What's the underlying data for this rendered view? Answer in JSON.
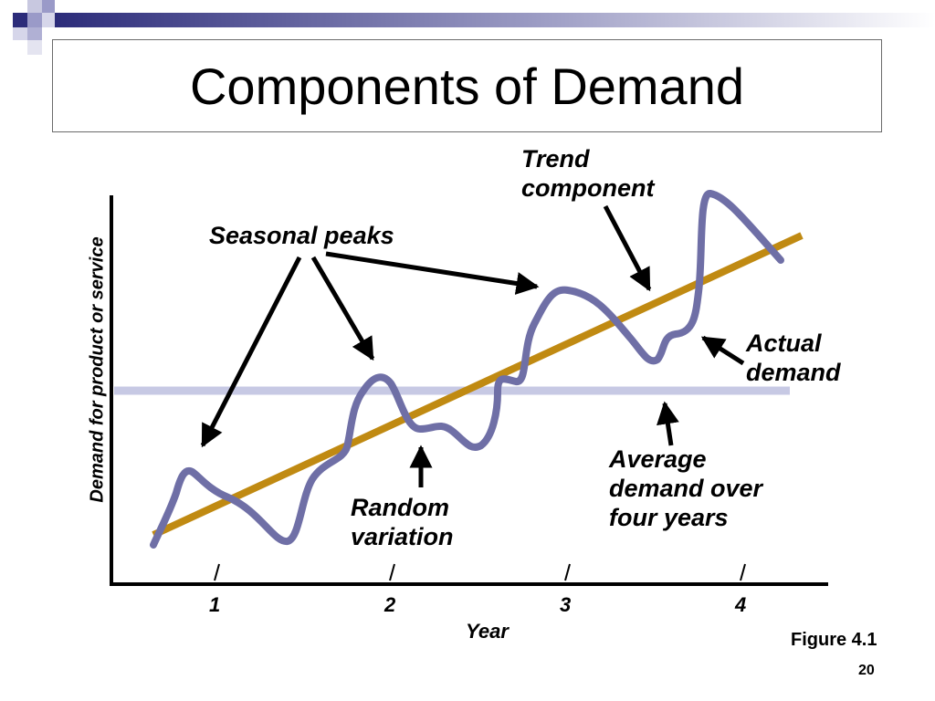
{
  "slide": {
    "title": "Components of Demand",
    "figure_label": "Figure 4.1",
    "page_number": "20"
  },
  "colors": {
    "trend_line": "#c08a12",
    "actual_demand": "#6f6fa6",
    "average_line": "#c7c9e4",
    "axis": "#000000",
    "header_bar": "#2c2c7a"
  },
  "chart_data": {
    "type": "line",
    "xlabel": "Year",
    "ylabel": "Demand for product or service",
    "xticks": [
      "1",
      "2",
      "3",
      "4"
    ],
    "annotations": {
      "trend": "Trend component",
      "seasonal": "Seasonal peaks",
      "actual": "Actual demand",
      "random": "Random variation",
      "average": "Average demand over four years"
    }
  },
  "labels": {
    "trend_line1": "Trend",
    "trend_line2": "component",
    "seasonal": "Seasonal peaks",
    "actual_line1": "Actual",
    "actual_line2": "demand",
    "random_line1": "Random",
    "random_line2": "variation",
    "average_line1": "Average",
    "average_line2": "demand over",
    "average_line3": "four years"
  }
}
